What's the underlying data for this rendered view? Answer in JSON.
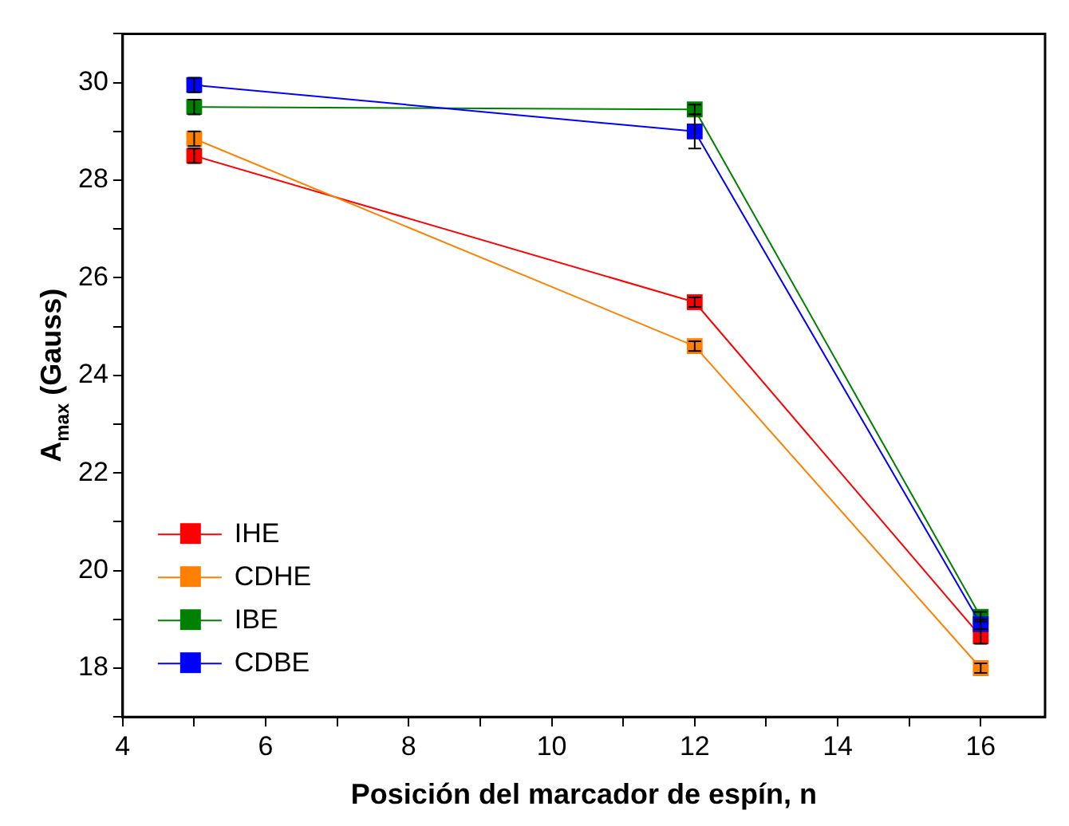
{
  "chart_data": {
    "type": "line",
    "xlabel": "Posición del marcador de espín, n",
    "ylabel": "A$_{max}$ (Gauss)",
    "x": [
      5,
      12,
      16
    ],
    "series": [
      {
        "name": "IHE",
        "color": "#ff0000",
        "values": [
          28.5,
          25.5,
          18.65
        ],
        "errors": [
          0.15,
          0.1,
          0.15
        ]
      },
      {
        "name": "CDHE",
        "color": "#ff8000",
        "values": [
          28.85,
          24.6,
          18.0
        ],
        "errors": [
          0.15,
          0.1,
          0.1
        ]
      },
      {
        "name": "IBE",
        "color": "#008000",
        "values": [
          29.5,
          29.45,
          19.05
        ],
        "errors": [
          0.15,
          0.1,
          0.1
        ]
      },
      {
        "name": "CDBE",
        "color": "#0000ff",
        "values": [
          29.95,
          29.0,
          18.9
        ],
        "errors": [
          0.15,
          0.35,
          0.1
        ]
      }
    ],
    "xlim": [
      4,
      16.9
    ],
    "xticks": [
      4,
      {
        "value": 5,
        "label": null
      },
      6,
      {
        "value": 7,
        "label": null
      },
      8,
      {
        "value": 9,
        "label": null
      },
      10,
      {
        "value": 11,
        "label": null
      },
      12,
      {
        "value": 13,
        "label": null
      },
      14,
      {
        "value": 15,
        "label": null
      },
      16
    ],
    "ylim": [
      17,
      31
    ],
    "yticks": [
      {
        "value": 17,
        "label": null
      },
      18,
      {
        "value": 19,
        "label": null
      },
      20,
      {
        "value": 21,
        "label": null
      },
      22,
      {
        "value": 23,
        "label": null
      },
      24,
      {
        "value": 25,
        "label": null
      },
      26,
      {
        "value": 27,
        "label": null
      },
      28,
      {
        "value": 29,
        "label": null
      },
      30,
      {
        "value": 31,
        "label": null
      }
    ],
    "grid": false,
    "legend": "bottom left",
    "marker": "square",
    "line_style": "solid"
  }
}
